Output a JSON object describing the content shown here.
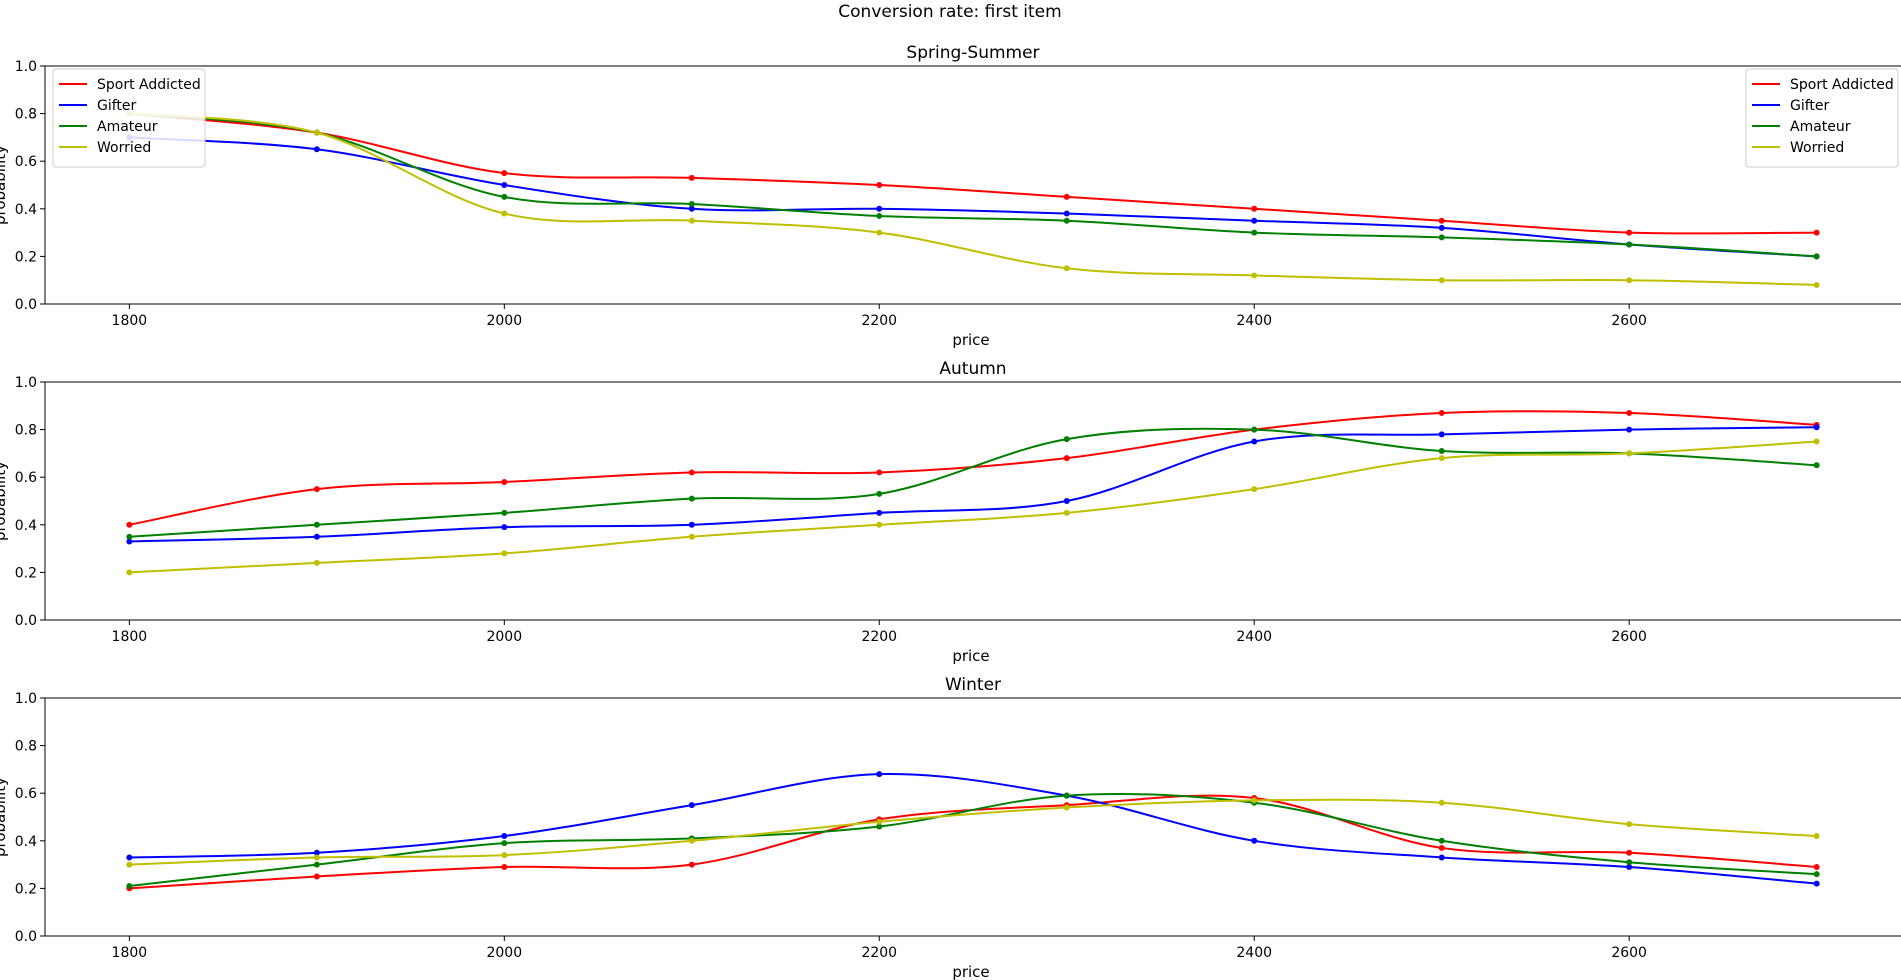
{
  "figure": {
    "title": "Conversion rate: first item"
  },
  "colors": {
    "Sport Addicted": "#ff0000",
    "Gifter": "#0000ff",
    "Amateur": "#008000",
    "Worried": "#bfbf00"
  },
  "chart_data": [
    {
      "type": "line",
      "title": "Spring-Summer",
      "xlabel": "price",
      "ylabel": "probability",
      "x": [
        1800,
        1900,
        2000,
        2100,
        2200,
        2300,
        2400,
        2500,
        2600,
        2700
      ],
      "xticks": [
        "1800",
        "2000",
        "2200",
        "2400",
        "2600"
      ],
      "xlim": [
        1755,
        2745
      ],
      "yticks": [
        "0.0",
        "0.2",
        "0.4",
        "0.6",
        "0.8",
        "1.0"
      ],
      "ylim": [
        0.0,
        1.0
      ],
      "legend_position": "upper right",
      "series": [
        {
          "name": "Sport Addicted",
          "values": [
            0.8,
            0.72,
            0.55,
            0.53,
            0.5,
            0.45,
            0.4,
            0.35,
            0.3,
            0.3
          ]
        },
        {
          "name": "Gifter",
          "values": [
            0.7,
            0.65,
            0.5,
            0.4,
            0.4,
            0.38,
            0.35,
            0.32,
            0.25,
            0.2
          ]
        },
        {
          "name": "Amateur",
          "values": [
            0.8,
            0.72,
            0.45,
            0.42,
            0.37,
            0.35,
            0.3,
            0.28,
            0.25,
            0.2
          ]
        },
        {
          "name": "Worried",
          "values": [
            0.8,
            0.72,
            0.38,
            0.35,
            0.3,
            0.15,
            0.12,
            0.1,
            0.1,
            0.08
          ]
        }
      ]
    },
    {
      "type": "line",
      "title": "Autumn",
      "xlabel": "price",
      "ylabel": "probability",
      "x": [
        1800,
        1900,
        2000,
        2100,
        2200,
        2300,
        2400,
        2500,
        2600,
        2700
      ],
      "xticks": [
        "1800",
        "2000",
        "2200",
        "2400",
        "2600"
      ],
      "xlim": [
        1755,
        2745
      ],
      "yticks": [
        "0.0",
        "0.2",
        "0.4",
        "0.6",
        "0.8",
        "1.0"
      ],
      "ylim": [
        0.0,
        1.0
      ],
      "legend_position": "upper left",
      "series": [
        {
          "name": "Sport Addicted",
          "values": [
            0.4,
            0.55,
            0.58,
            0.62,
            0.62,
            0.68,
            0.8,
            0.87,
            0.87,
            0.82
          ]
        },
        {
          "name": "Gifter",
          "values": [
            0.33,
            0.35,
            0.39,
            0.4,
            0.45,
            0.5,
            0.75,
            0.78,
            0.8,
            0.81
          ]
        },
        {
          "name": "Amateur",
          "values": [
            0.35,
            0.4,
            0.45,
            0.51,
            0.53,
            0.76,
            0.8,
            0.71,
            0.7,
            0.65
          ]
        },
        {
          "name": "Worried",
          "values": [
            0.2,
            0.24,
            0.28,
            0.35,
            0.4,
            0.45,
            0.55,
            0.68,
            0.7,
            0.75
          ]
        }
      ]
    },
    {
      "type": "line",
      "title": "Winter",
      "xlabel": "price",
      "ylabel": "probability",
      "x": [
        1800,
        1900,
        2000,
        2100,
        2200,
        2300,
        2400,
        2500,
        2600,
        2700
      ],
      "xticks": [
        "1800",
        "2000",
        "2200",
        "2400",
        "2600"
      ],
      "xlim": [
        1755,
        2745
      ],
      "yticks": [
        "0.0",
        "0.2",
        "0.4",
        "0.6",
        "0.8",
        "1.0"
      ],
      "ylim": [
        0.0,
        1.0
      ],
      "legend_position": "upper right",
      "series": [
        {
          "name": "Sport Addicted",
          "values": [
            0.2,
            0.25,
            0.29,
            0.3,
            0.49,
            0.55,
            0.58,
            0.37,
            0.35,
            0.29
          ]
        },
        {
          "name": "Gifter",
          "values": [
            0.33,
            0.35,
            0.42,
            0.55,
            0.68,
            0.59,
            0.4,
            0.33,
            0.29,
            0.22
          ]
        },
        {
          "name": "Amateur",
          "values": [
            0.21,
            0.3,
            0.39,
            0.41,
            0.46,
            0.59,
            0.56,
            0.4,
            0.31,
            0.26
          ]
        },
        {
          "name": "Worried",
          "values": [
            0.3,
            0.33,
            0.34,
            0.4,
            0.48,
            0.54,
            0.57,
            0.56,
            0.47,
            0.42
          ]
        }
      ]
    }
  ]
}
